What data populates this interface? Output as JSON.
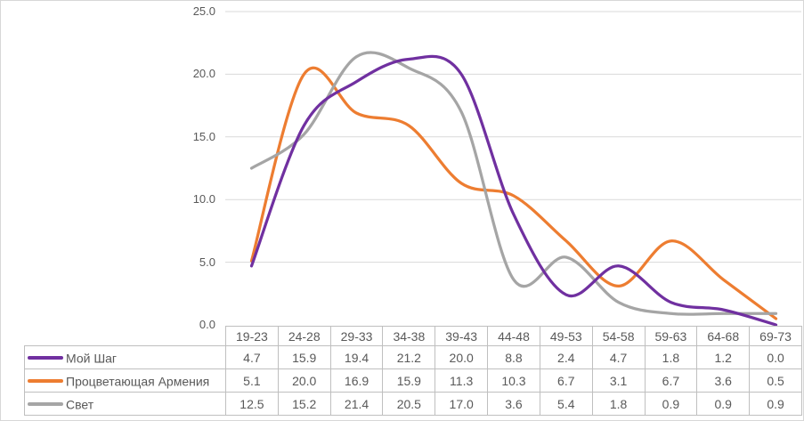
{
  "chart_data": {
    "type": "line",
    "smooth": true,
    "title": "",
    "xlabel": "",
    "ylabel": "",
    "categories": [
      "19-23",
      "24-28",
      "29-33",
      "34-38",
      "39-43",
      "44-48",
      "49-53",
      "54-58",
      "59-63",
      "64-68",
      "69-73"
    ],
    "series": [
      {
        "name": "Мой Шаг",
        "color": "#7030A0",
        "values": [
          4.7,
          15.9,
          19.4,
          21.2,
          20.0,
          8.8,
          2.4,
          4.7,
          1.8,
          1.2,
          0.0
        ]
      },
      {
        "name": "Процветающая Армения",
        "color": "#ED7D31",
        "values": [
          5.1,
          20.0,
          16.9,
          15.9,
          11.3,
          10.3,
          6.7,
          3.1,
          6.7,
          3.6,
          0.5
        ]
      },
      {
        "name": "Свет",
        "color": "#A5A5A5",
        "values": [
          12.5,
          15.2,
          21.4,
          20.5,
          17.0,
          3.6,
          5.4,
          1.8,
          0.9,
          0.9,
          0.9
        ]
      }
    ],
    "ylim": [
      0,
      25
    ],
    "ytick_step": 5,
    "ytick_labels": [
      "0.0",
      "5.0",
      "10.0",
      "15.0",
      "20.0",
      "25.0"
    ],
    "value_decimals": 1,
    "grid": "horizontal-only",
    "legend_position": "left-of-data-table"
  },
  "colors": {
    "grid": "#D9D9D9",
    "table_border": "#BFBFBF",
    "text": "#595959",
    "background": "#FFFFFF",
    "frame_border": "#D7D7D7"
  }
}
